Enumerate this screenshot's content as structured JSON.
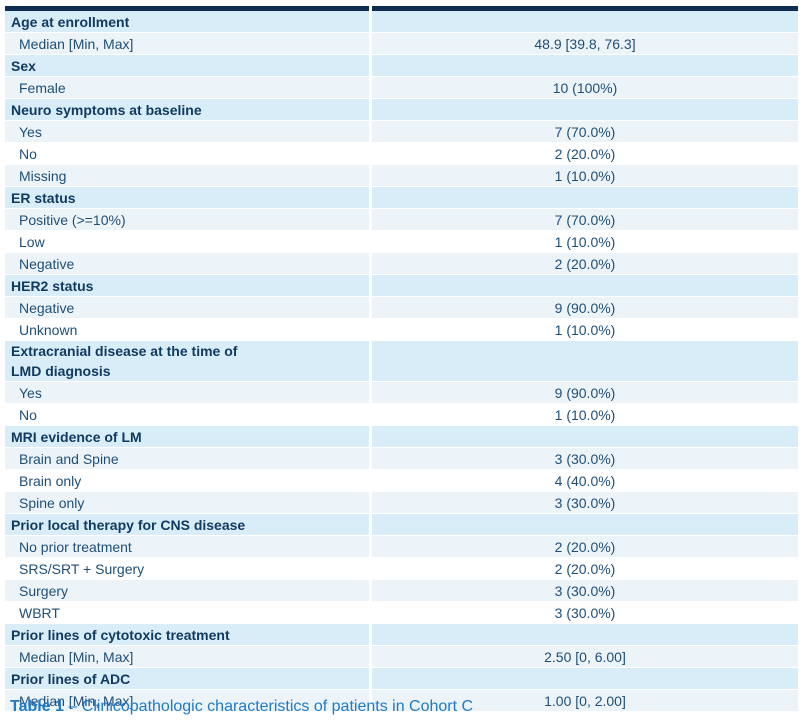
{
  "table": {
    "sections": [
      {
        "header": "Age at enrollment",
        "rows": [
          {
            "label": "Median [Min, Max]",
            "value": "48.9 [39.8, 76.3]"
          }
        ]
      },
      {
        "header": "Sex",
        "rows": [
          {
            "label": "Female",
            "value": "10 (100%)"
          }
        ]
      },
      {
        "header": "Neuro symptoms at baseline",
        "rows": [
          {
            "label": "Yes",
            "value": "7 (70.0%)"
          },
          {
            "label": "No",
            "value": "2 (20.0%)"
          },
          {
            "label": "Missing",
            "value": "1 (10.0%)"
          }
        ]
      },
      {
        "header": "ER status",
        "rows": [
          {
            "label": "Positive (>=10%)",
            "value": "7 (70.0%)"
          },
          {
            "label": "Low",
            "value": "1 (10.0%)"
          },
          {
            "label": "Negative",
            "value": "2 (20.0%)"
          }
        ]
      },
      {
        "header": "HER2 status",
        "rows": [
          {
            "label": "Negative",
            "value": "9 (90.0%)"
          },
          {
            "label": "Unknown",
            "value": "1 (10.0%)"
          }
        ]
      },
      {
        "header": "Extracranial disease at the time of\nLMD diagnosis",
        "rows": [
          {
            "label": "Yes",
            "value": "9 (90.0%)"
          },
          {
            "label": "No",
            "value": "1 (10.0%)"
          }
        ]
      },
      {
        "header": "MRI evidence of LM",
        "rows": [
          {
            "label": "Brain and Spine",
            "value": "3 (30.0%)"
          },
          {
            "label": "Brain only",
            "value": "4 (40.0%)"
          },
          {
            "label": "Spine only",
            "value": "3 (30.0%)"
          }
        ]
      },
      {
        "header": "Prior local therapy for CNS disease",
        "rows": [
          {
            "label": "No prior treatment",
            "value": "2 (20.0%)"
          },
          {
            "label": "SRS/SRT + Surgery",
            "value": "2 (20.0%)"
          },
          {
            "label": "Surgery",
            "value": "3 (30.0%)"
          },
          {
            "label": "WBRT",
            "value": "3 (30.0%)"
          }
        ]
      },
      {
        "header": "Prior lines of cytotoxic treatment",
        "rows": [
          {
            "label": "Median [Min, Max]",
            "value": "2.50 [0, 6.00]"
          }
        ]
      },
      {
        "header": "Prior lines of ADC",
        "rows": [
          {
            "label": "Median [Min, Max]",
            "value": "1.00 [0, 2.00]"
          }
        ]
      }
    ]
  },
  "caption": {
    "label": "Table 1",
    "dash": "–",
    "text": "Clinicopathologic characteristics of patients in Cohort C"
  },
  "colors": {
    "top_border": "#0e2d50",
    "header_row_bg": "#d9edf9",
    "stripe_row_bg": "#edf4f9",
    "header_text": "#113a60",
    "data_text": "#1e4e78",
    "caption": "#1e7ac9"
  }
}
